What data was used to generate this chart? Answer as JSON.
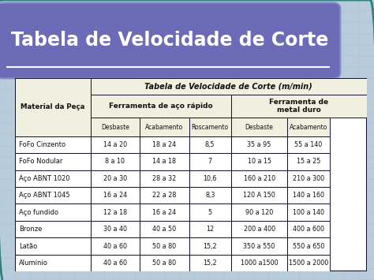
{
  "title": "Tabela de Velocidade de Corte",
  "title_color": "#FFFFFF",
  "title_bg_color": "#6B6BB8",
  "table_title": "Tabela de Velocidade de Corte (m/min)",
  "col_group1": "Ferramenta de aço rápido",
  "col_group2": "Ferramenta de\nmetal duro",
  "col_headers": [
    "Desbaste",
    "Acabamento",
    "Roscamento",
    "Desbaste",
    "Acabamento"
  ],
  "row_header": "Material da Peça",
  "rows": [
    [
      "FoFo Cinzento",
      "14 a 20",
      "18 a 24",
      "8,5",
      "35 a 95",
      "55 a 140"
    ],
    [
      "FoFo Nodular",
      "8 a 10",
      "14 a 18",
      "7",
      "10 a 15",
      "15 a 25"
    ],
    [
      "Aço ABNT 1020",
      "20 a 30",
      "28 a 32",
      "10,6",
      "160 a 210",
      "210 a 300"
    ],
    [
      "Aço ABNT 1045",
      "16 a 24",
      "22 a 28",
      "8,3",
      "120 A 150",
      "140 a 160"
    ],
    [
      "Aço fundido",
      "12 a 18",
      "16 a 24",
      "5",
      "90 a 120",
      "100 a 140"
    ],
    [
      "Bronze",
      "30 a 40",
      "40 a 50",
      "12",
      "200 a 400",
      "400 a 600"
    ],
    [
      "Latão",
      "40 a 60",
      "50 a 80",
      "15,2",
      "350 a 550",
      "550 a 650"
    ],
    [
      "Alumínio",
      "40 a 60",
      "50 a 80",
      "15,2",
      "1000 a1500",
      "1500 a 2000"
    ]
  ],
  "bg_color": "#B8CCDC",
  "border_color": "#111133",
  "outer_border_color": "#2D8080",
  "cell_bg": "#FFFFFF",
  "header_bg": "#F0EFE0",
  "figsize": [
    4.74,
    3.55
  ],
  "dpi": 100
}
